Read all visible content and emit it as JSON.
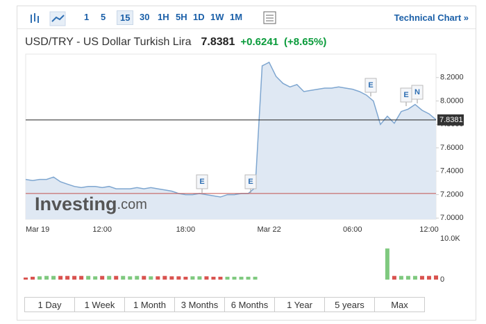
{
  "toolbar": {
    "intervals": [
      "1",
      "5",
      "15",
      "30",
      "1H",
      "5H",
      "1D",
      "1W",
      "1M"
    ],
    "active": 2,
    "link": "Technical Chart »"
  },
  "header": {
    "title": "USD/TRY - US Dollar Turkish Lira",
    "change": "+0.6241",
    "change_percent": "(+8.65%)"
  },
  "watermark": {
    "brand": "Investing",
    "suffix": ".com"
  },
  "events": [
    {
      "label": "E"
    },
    {
      "label": "E"
    },
    {
      "label": "E"
    },
    {
      "label": "E"
    },
    {
      "label": "N"
    }
  ],
  "ranges": [
    "1 Day",
    "1 Week",
    "1 Month",
    "3 Months",
    "6 Months",
    "1 Year",
    "5 years",
    "Max"
  ],
  "chart_data": {
    "type": "area",
    "color": "#7ea6d0",
    "fill": "#dfe8f3",
    "categories": [
      "Mar 19",
      null,
      null,
      null,
      null,
      null,
      null,
      null,
      null,
      null,
      null,
      "12:00",
      null,
      null,
      null,
      null,
      null,
      null,
      null,
      null,
      null,
      null,
      null,
      "18:00",
      null,
      null,
      null,
      null,
      null,
      null,
      null,
      null,
      null,
      null,
      null,
      "Mar 22",
      null,
      null,
      null,
      null,
      null,
      null,
      null,
      null,
      null,
      null,
      null,
      "06:00",
      null,
      null,
      null,
      null,
      null,
      null,
      null,
      null,
      null,
      null,
      "12:00",
      null
    ],
    "values": [
      7.33,
      7.32,
      7.33,
      7.33,
      7.35,
      7.31,
      7.29,
      7.27,
      7.26,
      7.27,
      7.27,
      7.26,
      7.27,
      7.25,
      7.25,
      7.25,
      7.26,
      7.25,
      7.26,
      7.25,
      7.24,
      7.23,
      7.21,
      7.2,
      7.2,
      7.21,
      7.2,
      7.19,
      7.18,
      7.2,
      7.2,
      7.21,
      7.21,
      7.26,
      8.3,
      8.33,
      8.21,
      8.15,
      8.12,
      8.14,
      8.08,
      8.09,
      8.1,
      8.11,
      8.11,
      8.12,
      8.11,
      8.1,
      8.08,
      8.05,
      8.0,
      7.8,
      7.87,
      7.81,
      7.91,
      7.93,
      7.97,
      7.92,
      7.89,
      7.84
    ],
    "ylim": [
      6.99,
      8.4
    ],
    "yticks": [
      {
        "value": 7.0,
        "label": "7.0000"
      },
      {
        "value": 7.2,
        "label": "7.2000"
      },
      {
        "value": 7.4,
        "label": "7.4000"
      },
      {
        "value": 7.6,
        "label": "7.6000"
      },
      {
        "value": 7.8,
        "label": "7.8000"
      },
      {
        "value": 8.0,
        "label": "8.0000"
      },
      {
        "value": 8.2,
        "label": "8.2000"
      }
    ],
    "last_price": 7.8381,
    "reference_line": 7.21,
    "volume": [
      500,
      700,
      800,
      900,
      900,
      900,
      900,
      900,
      900,
      900,
      800,
      900,
      900,
      900,
      900,
      800,
      900,
      900,
      800,
      800,
      900,
      800,
      800,
      700,
      800,
      800,
      800,
      700,
      700,
      700,
      700,
      700,
      700,
      700,
      null,
      null,
      null,
      null,
      null,
      null,
      null,
      null,
      null,
      null,
      null,
      null,
      null,
      null,
      null,
      null,
      null,
      null,
      7600,
      900,
      900,
      900,
      900,
      900,
      900,
      1000
    ],
    "volume_ylim": [
      0,
      10000
    ],
    "volume_ticks": [
      {
        "value": 10000,
        "label": "10.0K"
      },
      0
    ],
    "up_color": "#7fc97f",
    "down_color": "#d9534f"
  }
}
